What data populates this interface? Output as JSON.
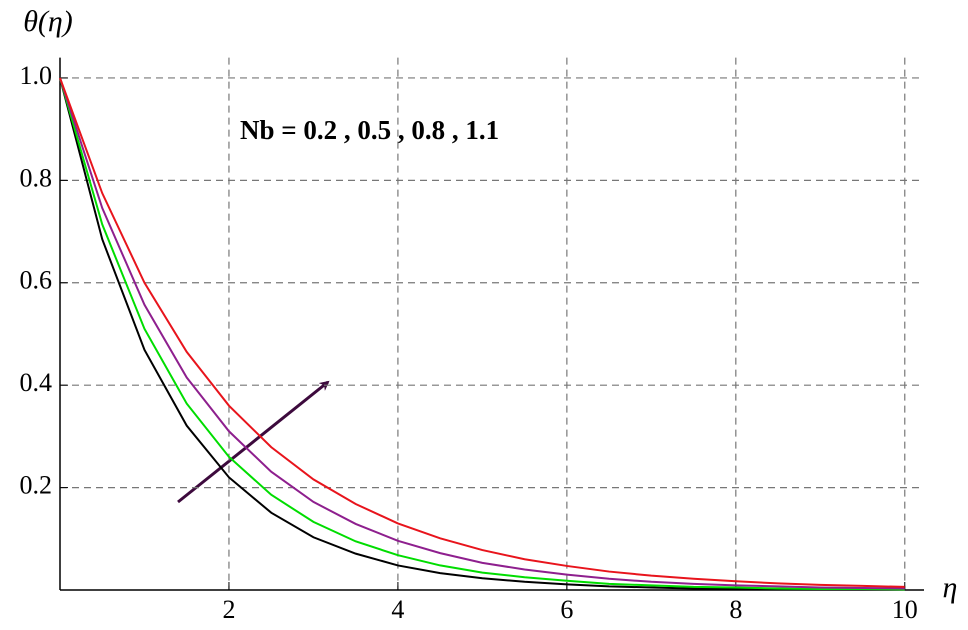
{
  "chart_data": {
    "type": "line",
    "y_label": "θ(η)",
    "x_label": "η",
    "annotation": "Nb = 0.2 , 0.5 , 0.8 , 1.1",
    "x": [
      0,
      0.5,
      1,
      1.5,
      2,
      2.5,
      3,
      3.5,
      4,
      4.5,
      5,
      5.5,
      6,
      6.5,
      7,
      7.5,
      8,
      8.5,
      9,
      9.5,
      10
    ],
    "series": [
      {
        "color": "#000000",
        "values": [
          1,
          0.685,
          0.469,
          0.321,
          0.22,
          0.151,
          0.103,
          0.071,
          0.048,
          0.033,
          0.023,
          0.016,
          0.011,
          0.007,
          0.005,
          0.003,
          0.002,
          0.002,
          0.001,
          0.001,
          0.001
        ]
      },
      {
        "color": "#00dd00",
        "values": [
          1,
          0.714,
          0.51,
          0.364,
          0.26,
          0.186,
          0.133,
          0.095,
          0.068,
          0.048,
          0.034,
          0.025,
          0.018,
          0.012,
          0.009,
          0.006,
          0.005,
          0.003,
          0.002,
          0.002,
          0.001
        ]
      },
      {
        "color": "#8e1f8e",
        "values": [
          1,
          0.746,
          0.557,
          0.415,
          0.31,
          0.231,
          0.172,
          0.129,
          0.096,
          0.072,
          0.053,
          0.04,
          0.03,
          0.022,
          0.016,
          0.012,
          0.009,
          0.007,
          0.005,
          0.004,
          0.003
        ]
      },
      {
        "color": "#e8141c",
        "values": [
          1,
          0.775,
          0.6,
          0.465,
          0.36,
          0.279,
          0.216,
          0.168,
          0.13,
          0.101,
          0.078,
          0.06,
          0.047,
          0.036,
          0.028,
          0.022,
          0.017,
          0.013,
          0.01,
          0.008,
          0.006
        ]
      }
    ],
    "xlim": [
      0,
      10.05
    ],
    "ylim": [
      0,
      1.03
    ],
    "xticks": [
      2,
      4,
      6,
      8,
      10
    ],
    "yticks": [
      0.2,
      0.4,
      0.6,
      0.8,
      {
        "value": 1,
        "label": "1.0"
      }
    ],
    "grid": true
  }
}
